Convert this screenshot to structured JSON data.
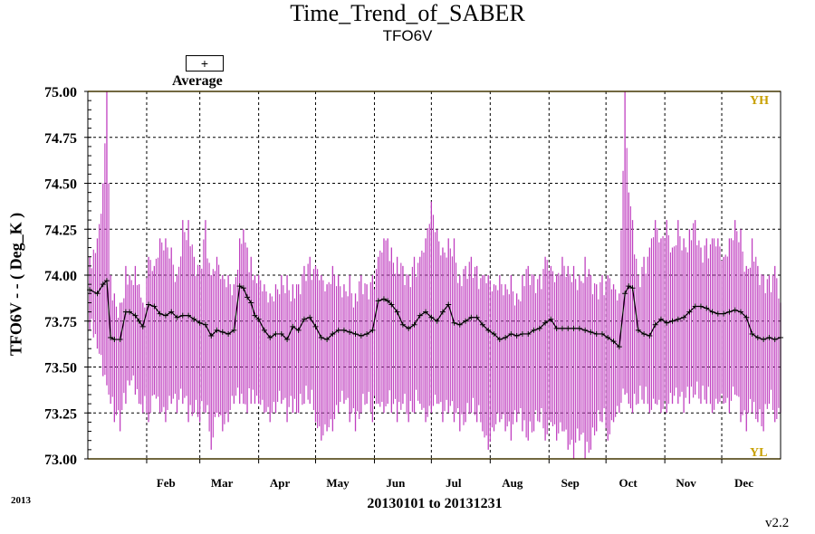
{
  "chart_data": {
    "type": "line",
    "title": "Time_Trend_of_SABER",
    "subtitle": "TFO6V",
    "ylabel": "TFO6V  - - ( Deg_K )",
    "xlabel": "20130101 to 20131231",
    "year_label": "2013",
    "version": "v2.2",
    "ylim": [
      73.0,
      75.0
    ],
    "xlim": [
      0,
      365
    ],
    "yticks": [
      "73.00",
      "73.25",
      "73.50",
      "73.75",
      "74.00",
      "74.25",
      "74.50",
      "74.75",
      "75.00"
    ],
    "ytick_values": [
      73.0,
      73.25,
      73.5,
      73.75,
      74.0,
      74.25,
      74.5,
      74.75,
      75.0
    ],
    "month_labels": [
      "Feb",
      "Mar",
      "Apr",
      "May",
      "Jun",
      "Jul",
      "Aug",
      "Sep",
      "Oct",
      "Nov",
      "Dec"
    ],
    "month_days": [
      31,
      59,
      90,
      120,
      151,
      181,
      212,
      243,
      273,
      304,
      334
    ],
    "grid": true,
    "limits": [
      {
        "name": "YH",
        "value": 75.0,
        "color": "#C8A000"
      },
      {
        "name": "YL",
        "value": 73.0,
        "color": "#C8A000"
      }
    ],
    "legend": {
      "symbol": "+",
      "label": "Average",
      "position": "top-left"
    },
    "series": [
      {
        "name": "Average",
        "color": "#000000",
        "range_color": "#C040C0",
        "x_day": [
          1,
          5,
          8,
          10,
          12,
          14,
          17,
          20,
          22,
          25,
          27,
          29,
          32,
          35,
          38,
          41,
          44,
          47,
          50,
          53,
          56,
          59,
          62,
          65,
          68,
          71,
          74,
          77,
          80,
          82,
          84,
          86,
          88,
          90,
          93,
          96,
          99,
          102,
          105,
          108,
          111,
          114,
          117,
          120,
          123,
          126,
          129,
          132,
          135,
          138,
          141,
          144,
          147,
          150,
          153,
          156,
          158,
          160,
          163,
          166,
          169,
          172,
          175,
          178,
          181,
          184,
          187,
          190,
          193,
          196,
          199,
          202,
          205,
          208,
          211,
          214,
          217,
          220,
          223,
          226,
          229,
          232,
          235,
          238,
          241,
          244,
          247,
          250,
          253,
          256,
          259,
          262,
          265,
          268,
          271,
          274,
          277,
          280,
          283,
          285,
          287,
          290,
          293,
          296,
          299,
          302,
          305,
          308,
          311,
          314,
          317,
          320,
          323,
          326,
          329,
          332,
          335,
          338,
          341,
          344,
          347,
          350,
          353,
          356,
          359,
          362,
          365
        ],
        "avg": [
          73.92,
          73.9,
          73.95,
          73.97,
          73.66,
          73.65,
          73.65,
          73.8,
          73.8,
          73.78,
          73.75,
          73.72,
          73.84,
          73.83,
          73.79,
          73.78,
          73.8,
          73.77,
          73.78,
          73.78,
          73.76,
          73.74,
          73.73,
          73.67,
          73.7,
          73.69,
          73.68,
          73.7,
          73.94,
          73.93,
          73.88,
          73.85,
          73.78,
          73.76,
          73.7,
          73.66,
          73.68,
          73.68,
          73.65,
          73.72,
          73.7,
          73.76,
          73.77,
          73.72,
          73.66,
          73.65,
          73.68,
          73.7,
          73.7,
          73.69,
          73.68,
          73.67,
          73.68,
          73.7,
          73.86,
          73.87,
          73.86,
          73.84,
          73.8,
          73.73,
          73.71,
          73.73,
          73.78,
          73.8,
          73.77,
          73.75,
          73.8,
          73.84,
          73.74,
          73.73,
          73.75,
          73.77,
          73.77,
          73.73,
          73.7,
          73.68,
          73.65,
          73.66,
          73.68,
          73.67,
          73.68,
          73.68,
          73.7,
          73.71,
          73.74,
          73.76,
          73.71,
          73.71,
          73.71,
          73.71,
          73.71,
          73.7,
          73.69,
          73.68,
          73.68,
          73.66,
          73.64,
          73.61,
          73.9,
          73.94,
          73.93,
          73.7,
          73.68,
          73.67,
          73.73,
          73.76,
          73.74,
          73.75,
          73.76,
          73.77,
          73.8,
          73.83,
          73.83,
          73.82,
          73.8,
          73.79,
          73.79,
          73.8,
          73.81,
          73.8,
          73.77,
          73.68,
          73.66,
          73.65,
          73.66,
          73.65,
          73.66
        ],
        "max": [
          74.1,
          74.2,
          74.5,
          75.0,
          74.0,
          73.9,
          73.85,
          74.05,
          74.0,
          74.05,
          73.95,
          73.85,
          74.1,
          74.05,
          74.2,
          74.2,
          74.15,
          74.0,
          74.3,
          74.3,
          74.1,
          74.05,
          74.3,
          74.0,
          74.1,
          74.0,
          74.0,
          73.95,
          74.2,
          74.25,
          74.15,
          74.1,
          74.0,
          74.0,
          73.95,
          73.9,
          73.95,
          74.0,
          74.0,
          73.95,
          73.95,
          74.05,
          74.1,
          74.05,
          74.0,
          73.95,
          74.05,
          74.0,
          73.95,
          74.0,
          73.9,
          74.0,
          73.95,
          74.0,
          74.1,
          74.2,
          74.2,
          74.15,
          74.1,
          74.05,
          74.0,
          74.1,
          74.1,
          74.2,
          74.4,
          74.25,
          74.15,
          74.2,
          74.2,
          74.0,
          74.05,
          74.1,
          74.05,
          74.0,
          74.0,
          73.95,
          74.0,
          73.95,
          74.0,
          73.9,
          74.0,
          74.05,
          74.0,
          74.0,
          74.1,
          74.05,
          74.0,
          74.1,
          74.05,
          74.05,
          74.0,
          74.1,
          74.0,
          73.95,
          74.0,
          74.0,
          73.95,
          73.9,
          75.0,
          74.45,
          74.3,
          74.0,
          74.1,
          74.15,
          74.3,
          74.2,
          74.3,
          74.15,
          74.3,
          74.2,
          74.25,
          74.3,
          74.15,
          74.2,
          74.2,
          74.2,
          74.1,
          74.2,
          74.3,
          74.25,
          74.05,
          74.2,
          74.05,
          74.0,
          74.0,
          74.05,
          73.85
        ],
        "min": [
          73.7,
          73.6,
          73.45,
          73.4,
          73.3,
          73.2,
          73.15,
          73.3,
          73.4,
          73.35,
          73.3,
          73.25,
          73.2,
          73.35,
          73.25,
          73.2,
          73.3,
          73.25,
          73.3,
          73.2,
          73.25,
          73.2,
          73.25,
          73.05,
          73.25,
          73.15,
          73.2,
          73.3,
          73.3,
          73.3,
          73.25,
          73.3,
          73.3,
          73.3,
          73.25,
          73.2,
          73.25,
          73.3,
          73.2,
          73.25,
          73.25,
          73.3,
          73.3,
          73.2,
          73.1,
          73.15,
          73.15,
          73.25,
          73.3,
          73.2,
          73.15,
          73.25,
          73.3,
          73.2,
          73.3,
          73.25,
          73.3,
          73.25,
          73.2,
          73.3,
          73.2,
          73.25,
          73.3,
          73.2,
          73.25,
          73.3,
          73.2,
          73.25,
          73.2,
          73.15,
          73.2,
          73.25,
          73.2,
          73.15,
          73.05,
          73.15,
          73.2,
          73.15,
          73.1,
          73.2,
          73.15,
          73.1,
          73.15,
          73.2,
          73.1,
          73.2,
          73.1,
          73.15,
          73.05,
          73.0,
          73.1,
          73.0,
          73.05,
          73.15,
          73.2,
          73.1,
          73.2,
          73.25,
          73.35,
          73.3,
          73.25,
          73.3,
          73.3,
          73.25,
          73.3,
          73.25,
          73.25,
          73.3,
          73.3,
          73.25,
          73.3,
          73.35,
          73.3,
          73.3,
          73.25,
          73.3,
          73.3,
          73.25,
          73.35,
          73.2,
          73.15,
          73.25,
          73.2,
          73.15,
          73.3,
          73.2,
          73.25
        ]
      }
    ]
  }
}
